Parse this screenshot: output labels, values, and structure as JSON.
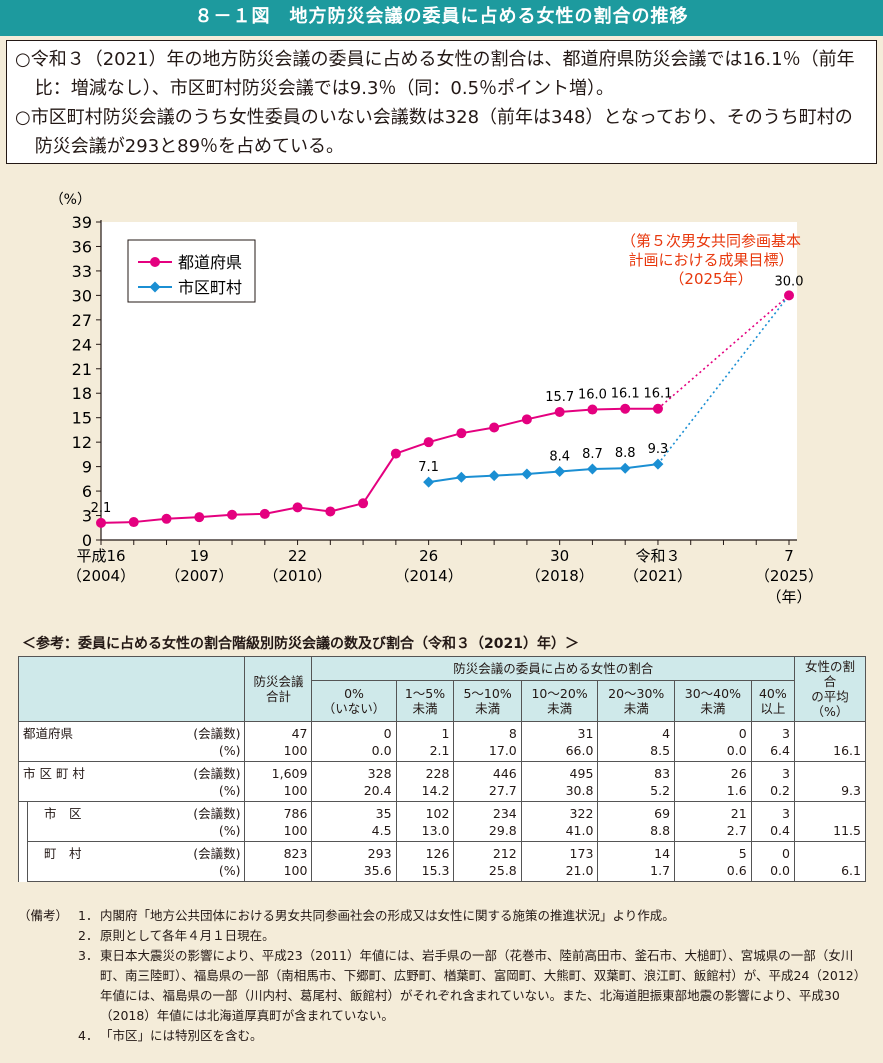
{
  "header": {
    "title": "８－１図　地方防災会議の委員に占める女性の割合の推移"
  },
  "summary": {
    "lines": [
      "○令和３（2021）年の地方防災会議の委員に占める女性の割合は、都道府県防災会議では16.1％（前年比：増減なし）、市区町村防災会議では9.3％（同：0.5％ポイント増）。",
      "○市区町村防災会議のうち女性委員のいない会議数は328（前年は348）となっており、そのうち町村の防災会議が293と89％を占めている。"
    ]
  },
  "chart_data": {
    "type": "line",
    "ylabel": "（%）",
    "xlabel": "（年）",
    "ylim": [
      0,
      39
    ],
    "yticks": [
      0,
      3,
      6,
      9,
      12,
      15,
      18,
      21,
      24,
      27,
      30,
      33,
      36,
      39
    ],
    "xlim": [
      2004,
      2025
    ],
    "xticks": [
      {
        "x": 2004,
        "top": "平成16",
        "bottom": "（2004）"
      },
      {
        "x": 2007,
        "top": "19",
        "bottom": "（2007）"
      },
      {
        "x": 2010,
        "top": "22",
        "bottom": "（2010）"
      },
      {
        "x": 2014,
        "top": "26",
        "bottom": "（2014）"
      },
      {
        "x": 2018,
        "top": "30",
        "bottom": "（2018）"
      },
      {
        "x": 2021,
        "top": "令和３",
        "bottom": "（2021）"
      },
      {
        "x": 2025,
        "top": "7",
        "bottom": "（2025）"
      }
    ],
    "series": [
      {
        "name": "都道府県",
        "color": "#e4007f",
        "marker": "circle",
        "x": [
          2004,
          2005,
          2006,
          2007,
          2008,
          2009,
          2010,
          2011,
          2012,
          2013,
          2014,
          2015,
          2016,
          2017,
          2018,
          2019,
          2020,
          2021
        ],
        "values": [
          2.1,
          2.2,
          2.6,
          2.8,
          3.1,
          3.2,
          4.0,
          3.5,
          4.5,
          10.6,
          12.0,
          13.1,
          13.8,
          14.8,
          15.7,
          16.0,
          16.1,
          16.1
        ],
        "labels": {
          "2004": "2.1",
          "2018": "15.7",
          "2019": "16.0",
          "2020": "16.1",
          "2021": "16.1"
        }
      },
      {
        "name": "市区町村",
        "color": "#1b8fd3",
        "marker": "diamond",
        "x": [
          2014,
          2015,
          2016,
          2017,
          2018,
          2019,
          2020,
          2021
        ],
        "values": [
          7.1,
          7.7,
          7.9,
          8.1,
          8.4,
          8.7,
          8.8,
          9.3
        ],
        "labels": {
          "2014": "7.1",
          "2018": "8.4",
          "2019": "8.7",
          "2020": "8.8",
          "2021": "9.3"
        }
      }
    ],
    "target": {
      "x": 2025,
      "value": 30.0,
      "label": "30.0",
      "annotation": [
        "（第５次男女共同参画基本",
        "計画における成果目標）",
        "（2025年）"
      ],
      "color": "#e8380d"
    },
    "legend_position": "top-left"
  },
  "reference": {
    "title": "＜参考：委員に占める女性の割合階級別防災会議の数及び割合（令和３（2021）年）＞",
    "headers": {
      "total": [
        "防災会議",
        "合計"
      ],
      "group": "防災会議の委員に占める女性の割合",
      "cols": [
        [
          "0%",
          "（いない）"
        ],
        [
          "1～5%",
          "未満"
        ],
        [
          "5～10%",
          "未満"
        ],
        [
          "10～20%",
          "未満"
        ],
        [
          "20～30%",
          "未満"
        ],
        [
          "30～40%",
          "未満"
        ],
        [
          "40%",
          "以上"
        ]
      ],
      "avg": [
        "女性の割合",
        "の平均",
        "（%）"
      ]
    },
    "unit_count": "(会議数)",
    "unit_pct": "(%)",
    "rows": [
      {
        "name": "都道府県",
        "counts": [
          "47",
          "0",
          "1",
          "8",
          "31",
          "4",
          "0",
          "3"
        ],
        "pcts": [
          "100",
          "0.0",
          "2.1",
          "17.0",
          "66.0",
          "8.5",
          "0.0",
          "6.4"
        ],
        "avg": "16.1"
      },
      {
        "name": "市 区 町 村",
        "counts": [
          "1,609",
          "328",
          "228",
          "446",
          "495",
          "83",
          "26",
          "3"
        ],
        "pcts": [
          "100",
          "20.4",
          "14.2",
          "27.7",
          "30.8",
          "5.2",
          "1.6",
          "0.2"
        ],
        "avg": "9.3"
      },
      {
        "name": "市　区",
        "counts": [
          "786",
          "35",
          "102",
          "234",
          "322",
          "69",
          "21",
          "3"
        ],
        "pcts": [
          "100",
          "4.5",
          "13.0",
          "29.8",
          "41.0",
          "8.8",
          "2.7",
          "0.4"
        ],
        "avg": "11.5"
      },
      {
        "name": "町　村",
        "counts": [
          "823",
          "293",
          "126",
          "212",
          "173",
          "14",
          "5",
          "0"
        ],
        "pcts": [
          "100",
          "35.6",
          "15.3",
          "25.8",
          "21.0",
          "1.7",
          "0.6",
          "0.0"
        ],
        "avg": "6.1"
      }
    ]
  },
  "notes": {
    "head": "（備考）",
    "items": [
      {
        "n": "1．",
        "t": "内閣府「地方公共団体における男女共同参画社会の形成又は女性に関する施策の推進状況」より作成。"
      },
      {
        "n": "2．",
        "t": "原則として各年４月１日現在。"
      },
      {
        "n": "3．",
        "t": "東日本大震災の影響により、平成23（2011）年値には、岩手県の一部（花巻市、陸前高田市、釜石市、大槌町）、宮城県の一部（女川町、南三陸町）、福島県の一部（南相馬市、下郷町、広野町、楢葉町、富岡町、大熊町、双葉町、浪江町、飯館村）が、平成24（2012）年値には、福島県の一部（川内村、葛尾村、飯館村）がそれぞれ含まれていない。また、北海道胆振東部地震の影響により、平成30（2018）年値には北海道厚真町が含まれていない。"
      },
      {
        "n": "4．",
        "t": "「市区」には特別区を含む。"
      }
    ]
  }
}
